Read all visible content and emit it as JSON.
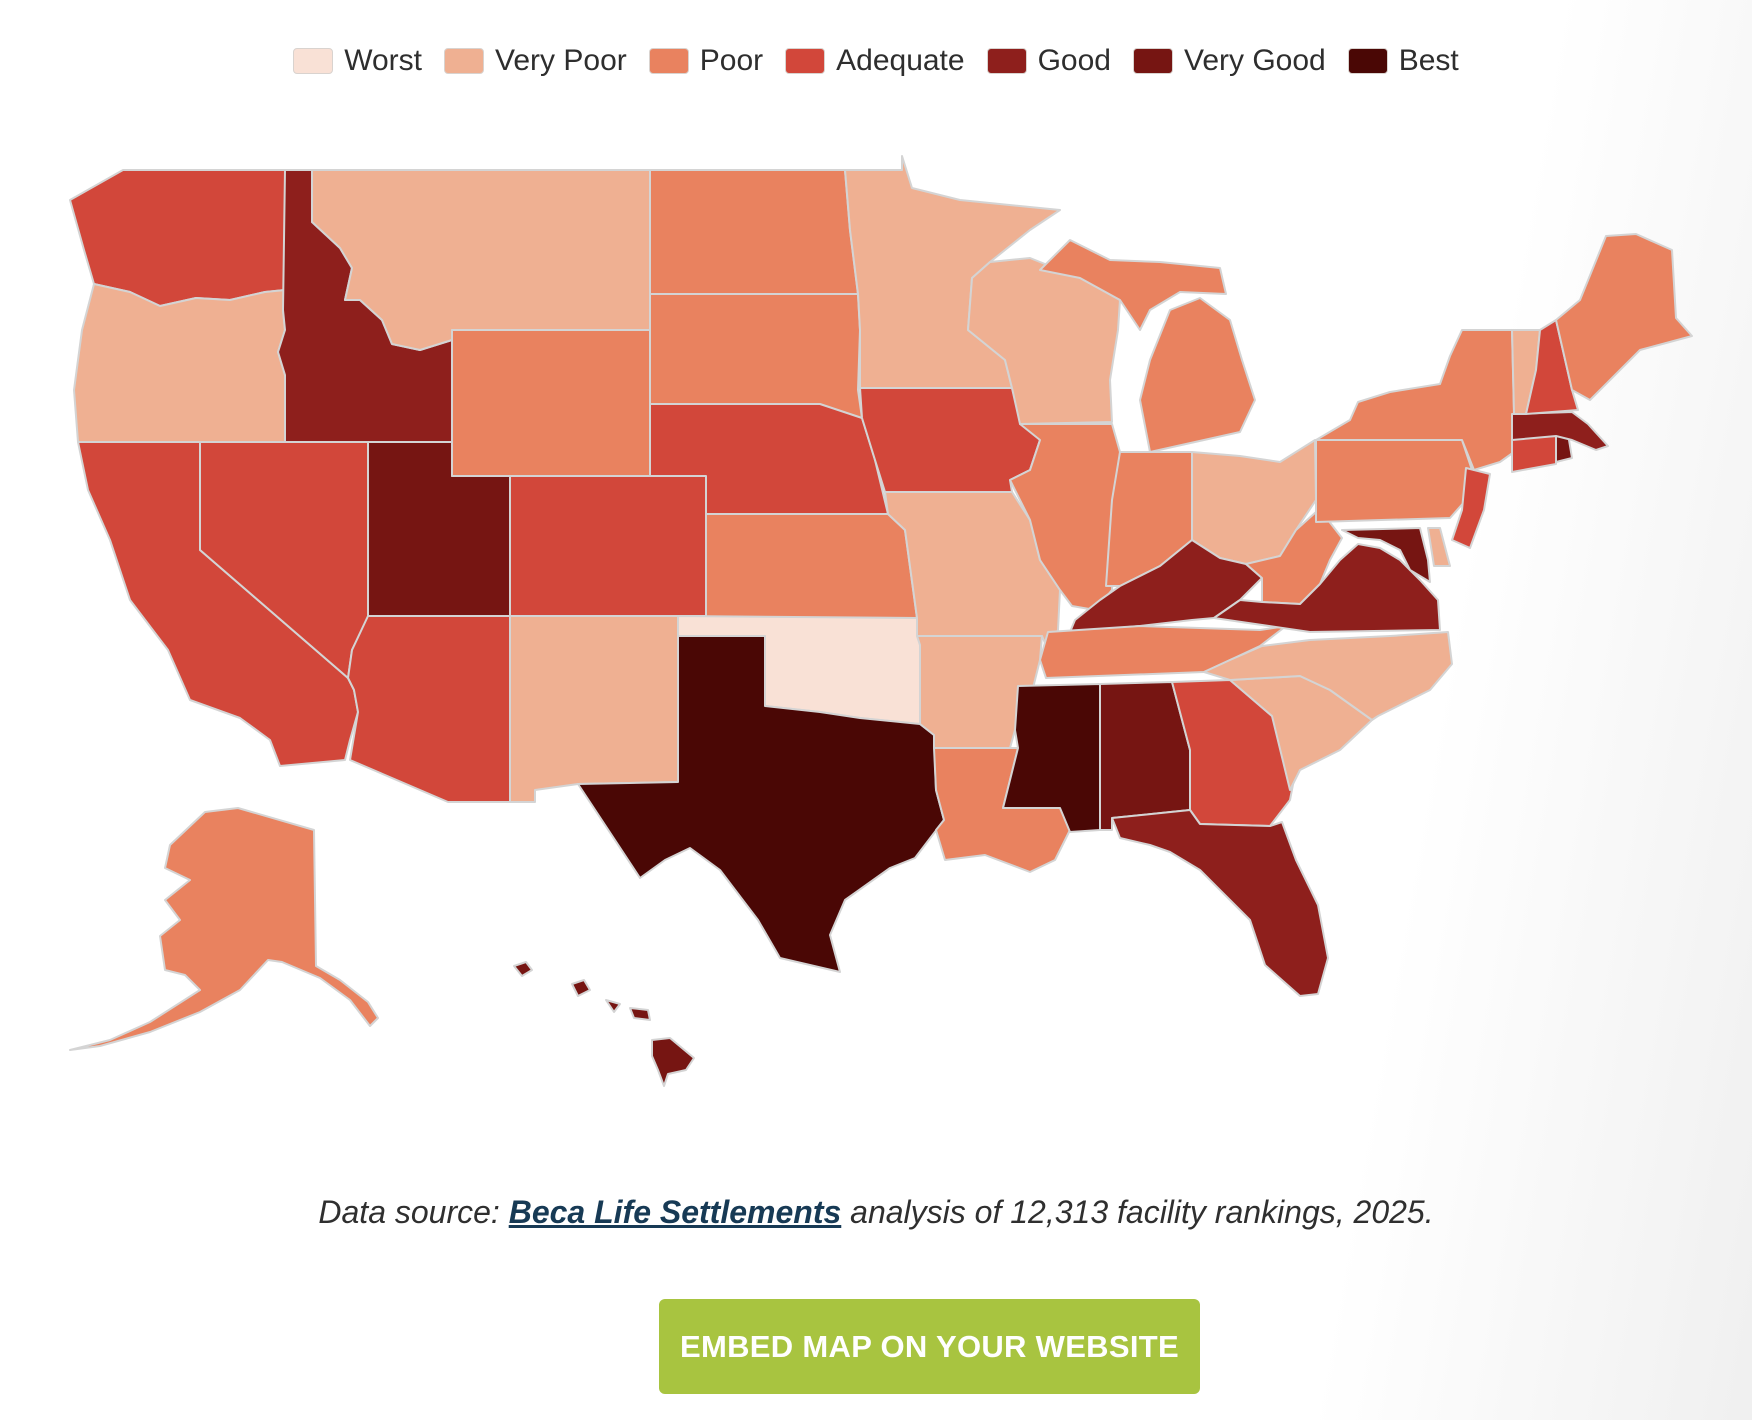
{
  "legend": [
    {
      "key": "worst",
      "label": "Worst",
      "color": "#f9e1d6"
    },
    {
      "key": "very_poor",
      "label": "Very Poor",
      "color": "#efb092"
    },
    {
      "key": "poor",
      "label": "Poor",
      "color": "#e9825f"
    },
    {
      "key": "adequate",
      "label": "Adequate",
      "color": "#d2473a"
    },
    {
      "key": "good",
      "label": "Good",
      "color": "#8e1f1c"
    },
    {
      "key": "very_good",
      "label": "Very Good",
      "color": "#761512"
    },
    {
      "key": "best",
      "label": "Best",
      "color": "#4a0705"
    }
  ],
  "states": {
    "WA": "adequate",
    "OR": "very_poor",
    "CA": "adequate",
    "ID": "good",
    "NV": "adequate",
    "UT": "very_good",
    "AZ": "adequate",
    "MT": "very_poor",
    "WY": "poor",
    "CO": "adequate",
    "NM": "very_poor",
    "ND": "poor",
    "SD": "poor",
    "NE": "adequate",
    "KS": "poor",
    "OK": "worst",
    "TX": "best",
    "MN": "very_poor",
    "IA": "adequate",
    "MO": "very_poor",
    "AR": "very_poor",
    "LA": "poor",
    "WI": "very_poor",
    "IL": "poor",
    "MI": "poor",
    "IN": "poor",
    "OH": "very_poor",
    "KY": "good",
    "TN": "poor",
    "MS": "best",
    "AL": "very_good",
    "GA": "adequate",
    "FL": "good",
    "SC": "very_poor",
    "NC": "very_poor",
    "VA": "good",
    "WV": "poor",
    "MD": "very_good",
    "DE": "very_poor",
    "NJ": "adequate",
    "PA": "poor",
    "NY": "poor",
    "CT": "adequate",
    "RI": "very_good",
    "MA": "good",
    "VT": "very_poor",
    "NH": "adequate",
    "ME": "poor",
    "AK": "poor",
    "HI": "very_good"
  },
  "caption": {
    "prefix": "Data source: ",
    "link_text": "Beca Life Settlements",
    "suffix": " analysis of 12,313 facility rankings, 2025."
  },
  "button": {
    "label": "EMBED MAP ON YOUR WEBSITE"
  }
}
